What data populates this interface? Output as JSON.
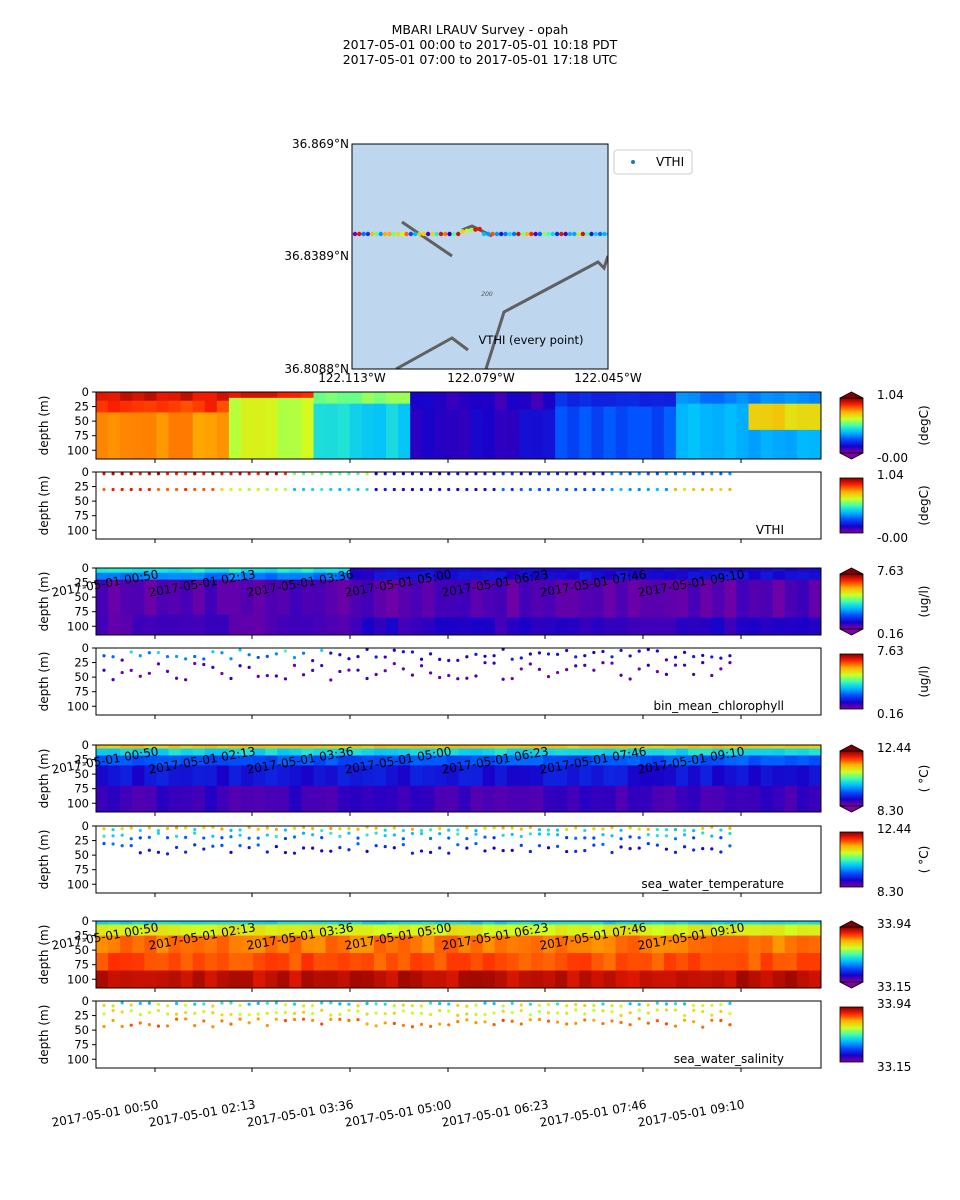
{
  "title": {
    "line1": "MBARI LRAUV Survey - opah",
    "line2": "2017-05-01 00:00  to  2017-05-01 10:18 PDT",
    "line3": "2017-05-01 07:00  to  2017-05-01 17:18 UTC"
  },
  "colors": {
    "map_water": "#bed6ee",
    "track": "#606060",
    "legend_dot": "#1f77b4"
  },
  "map": {
    "lat_ticks": [
      "36.869°N",
      "36.8389°N",
      "36.8088°N"
    ],
    "lon_ticks": [
      "122.113°W",
      "122.079°W",
      "122.045°W"
    ],
    "legend_label": "VTHI",
    "annotation": "VTHI (every point)",
    "contour_label": "200"
  },
  "time_ticks": [
    "2017-05-01 00:50",
    "2017-05-01 02:13",
    "2017-05-01 03:36",
    "2017-05-01 05:00",
    "2017-05-01 06:23",
    "2017-05-01 07:46",
    "2017-05-01 09:10"
  ],
  "chart_data": [
    {
      "type": "heatmap",
      "variable": "VTHI",
      "ylabel": "depth (m)",
      "yticks": [
        "0",
        "25",
        "50",
        "75",
        "100"
      ],
      "ylim": [
        115,
        0
      ],
      "colorbar": {
        "max_label": "1.04",
        "min_label": "-0.00",
        "units": "(degC)"
      },
      "note": ""
    },
    {
      "type": "scatter",
      "variable": "VTHI",
      "ylabel": "depth (m)",
      "yticks": [
        "0",
        "25",
        "50",
        "75",
        "100"
      ],
      "ylim": [
        115,
        0
      ],
      "label": "VTHI",
      "colorbar": {
        "max_label": "1.04",
        "min_label": "-0.00",
        "units": "(degC)"
      }
    },
    {
      "type": "heatmap",
      "variable": "bin_mean_chlorophyll",
      "ylabel": "depth (m)",
      "yticks": [
        "0",
        "25",
        "50",
        "75",
        "100"
      ],
      "ylim": [
        115,
        0
      ],
      "colorbar": {
        "max_label": "7.63",
        "min_label": "0.16",
        "units": "(ug/l)"
      }
    },
    {
      "type": "scatter",
      "variable": "bin_mean_chlorophyll",
      "ylabel": "depth (m)",
      "yticks": [
        "0",
        "25",
        "50",
        "75",
        "100"
      ],
      "ylim": [
        115,
        0
      ],
      "label": "bin_mean_chlorophyll",
      "colorbar": {
        "max_label": "7.63",
        "min_label": "0.16",
        "units": "(ug/l)"
      }
    },
    {
      "type": "heatmap",
      "variable": "sea_water_temperature",
      "ylabel": "depth (m)",
      "yticks": [
        "0",
        "25",
        "50",
        "75",
        "100"
      ],
      "ylim": [
        115,
        0
      ],
      "colorbar": {
        "max_label": "12.44",
        "min_label": "8.30",
        "units": "( °C)"
      }
    },
    {
      "type": "scatter",
      "variable": "sea_water_temperature",
      "ylabel": "depth (m)",
      "yticks": [
        "0",
        "25",
        "50",
        "75",
        "100"
      ],
      "ylim": [
        115,
        0
      ],
      "label": "sea_water_temperature",
      "colorbar": {
        "max_label": "12.44",
        "min_label": "8.30",
        "units": "( °C)"
      }
    },
    {
      "type": "heatmap",
      "variable": "sea_water_salinity",
      "ylabel": "depth (m)",
      "yticks": [
        "0",
        "25",
        "50",
        "75",
        "100"
      ],
      "ylim": [
        115,
        0
      ],
      "colorbar": {
        "max_label": "33.94",
        "min_label": "33.15",
        "units": ""
      }
    },
    {
      "type": "scatter",
      "variable": "sea_water_salinity",
      "ylabel": "depth (m)",
      "yticks": [
        "0",
        "25",
        "50",
        "75",
        "100"
      ],
      "ylim": [
        115,
        0
      ],
      "label": "sea_water_salinity",
      "colorbar": {
        "max_label": "33.94",
        "min_label": "33.15",
        "units": ""
      }
    }
  ]
}
